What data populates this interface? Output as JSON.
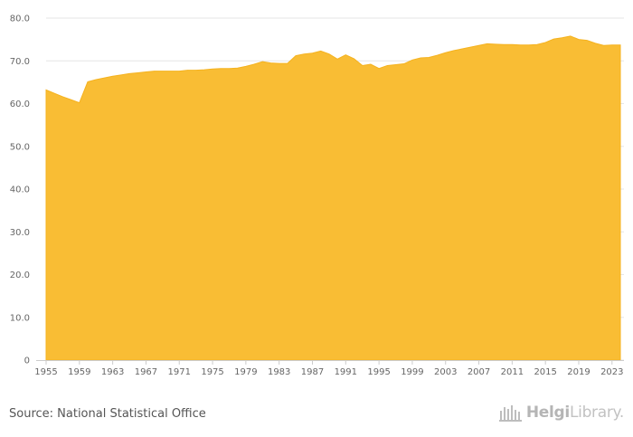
{
  "chart_data": {
    "type": "area",
    "title": "",
    "xlabel": "",
    "ylabel": "",
    "ylim": [
      0,
      80
    ],
    "yticks": [
      0,
      10.0,
      20.0,
      30.0,
      40.0,
      50.0,
      60.0,
      70.0,
      80.0
    ],
    "ytick_labels": [
      "0",
      "10.0",
      "20.0",
      "30.0",
      "40.0",
      "50.0",
      "60.0",
      "70.0",
      "80.0"
    ],
    "xlim": [
      1955,
      2024
    ],
    "xtick_labels": [
      "1955",
      "1959",
      "1963",
      "1967",
      "1971",
      "1975",
      "1979",
      "1983",
      "1987",
      "1991",
      "1995",
      "1999",
      "2003",
      "2007",
      "2011",
      "2015",
      "2019",
      "2023"
    ],
    "grid": true,
    "fill_color": "#f9bd34",
    "series": [
      {
        "x": [
          1955,
          1956,
          1957,
          1958,
          1959,
          1960,
          1961,
          1962,
          1963,
          1964,
          1965,
          1966,
          1967,
          1968,
          1969,
          1970,
          1971,
          1972,
          1973,
          1974,
          1975,
          1976,
          1977,
          1978,
          1979,
          1980,
          1981,
          1982,
          1983,
          1984,
          1985,
          1986,
          1987,
          1988,
          1989,
          1990,
          1991,
          1992,
          1993,
          1994,
          1995,
          1996,
          1997,
          1998,
          1999,
          2000,
          2001,
          2002,
          2003,
          2004,
          2005,
          2006,
          2007,
          2008,
          2009,
          2010,
          2011,
          2012,
          2013,
          2014,
          2015,
          2016,
          2017,
          2018,
          2019,
          2020,
          2021,
          2022,
          2023,
          2024
        ],
        "values": [
          63.2,
          62.4,
          61.6,
          60.9,
          60.2,
          65.1,
          65.6,
          66.0,
          66.4,
          66.7,
          67.0,
          67.2,
          67.4,
          67.6,
          67.6,
          67.6,
          67.6,
          67.8,
          67.8,
          67.9,
          68.1,
          68.2,
          68.2,
          68.3,
          68.7,
          69.2,
          69.8,
          69.5,
          69.4,
          69.4,
          71.2,
          71.6,
          71.8,
          72.3,
          71.6,
          70.4,
          71.4,
          70.5,
          68.9,
          69.2,
          68.2,
          68.9,
          69.1,
          69.3,
          70.2,
          70.7,
          70.8,
          71.3,
          71.9,
          72.4,
          72.8,
          73.2,
          73.6,
          74.0,
          73.9,
          73.8,
          73.8,
          73.7,
          73.7,
          73.8,
          74.3,
          75.1,
          75.4,
          75.8,
          75.0,
          74.8,
          74.1,
          73.6,
          73.7,
          73.7
        ]
      }
    ]
  },
  "footer": {
    "source": "Source: National Statistical Office",
    "brand_bold": "Helgi",
    "brand_regular": "Library."
  }
}
